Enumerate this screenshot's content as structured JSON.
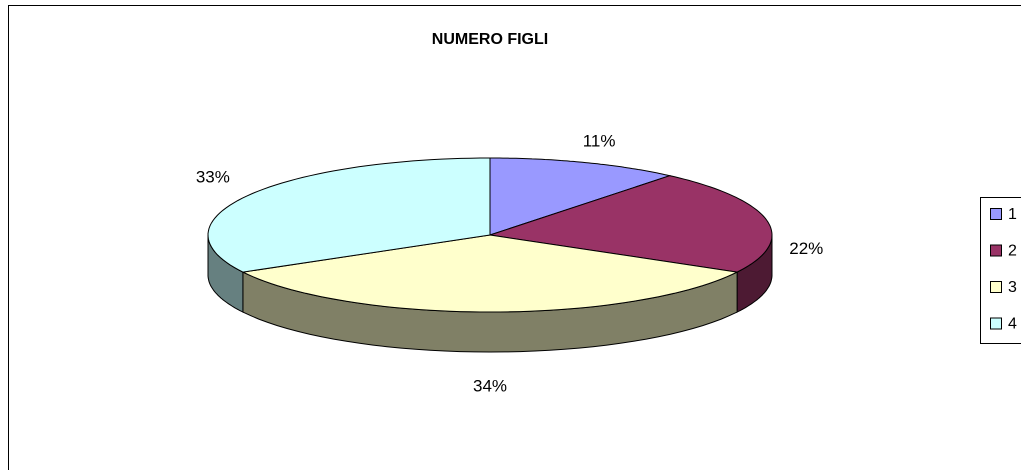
{
  "chart_data": {
    "type": "pie",
    "title": "NUMERO FIGLI",
    "categories": [
      "1",
      "2",
      "3",
      "4"
    ],
    "values": [
      11,
      22,
      34,
      33
    ],
    "value_labels": [
      "11%",
      "22%",
      "34%",
      "33%"
    ],
    "colors": [
      "#9999ff",
      "#993366",
      "#ffffcc",
      "#ccffff"
    ],
    "legend": "right"
  }
}
